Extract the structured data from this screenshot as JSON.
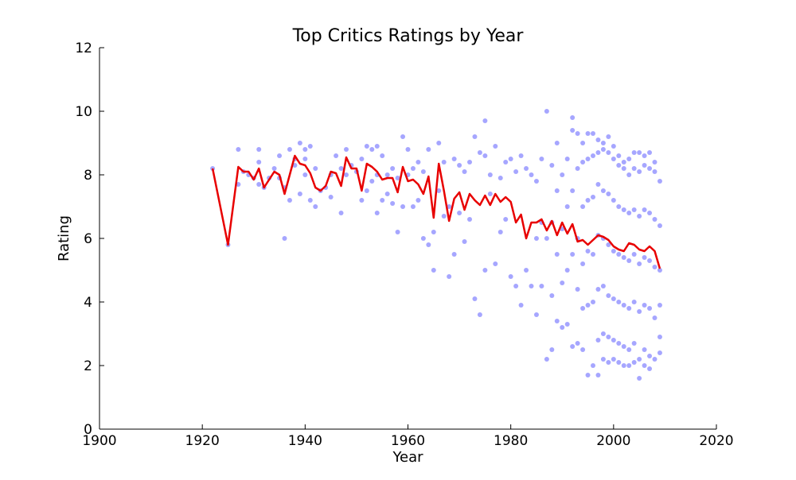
{
  "chart_data": {
    "type": "scatter",
    "title": "Top Critics Ratings by Year",
    "xlabel": "Year",
    "ylabel": "Rating",
    "xlim": [
      1900,
      2020
    ],
    "ylim": [
      0,
      12
    ],
    "x_ticks": [
      "1900",
      "1920",
      "1940",
      "1960",
      "1980",
      "2000",
      "2020"
    ],
    "y_ticks": [
      "0",
      "2",
      "4",
      "6",
      "8",
      "10",
      "12"
    ],
    "grid": false,
    "legend": "none",
    "colors": {
      "scatter": "#0000ff",
      "line": "#e80000",
      "axis": "#000000"
    },
    "series": [
      {
        "type": "scatter",
        "x": [
          1922,
          1925,
          1927,
          1927,
          1928,
          1929,
          1930,
          1931,
          1931,
          1931,
          1932,
          1933,
          1934,
          1935,
          1935,
          1936,
          1936,
          1937,
          1937,
          1938,
          1938,
          1939,
          1939,
          1940,
          1940,
          1940,
          1941,
          1941,
          1942,
          1942,
          1943,
          1944,
          1945,
          1945,
          1946,
          1947,
          1947,
          1948,
          1948,
          1949,
          1950,
          1951,
          1951,
          1952,
          1952,
          1953,
          1953,
          1954,
          1954,
          1954,
          1955,
          1955,
          1956,
          1956,
          1957,
          1957,
          1958,
          1958,
          1959,
          1959,
          1960,
          1960,
          1961,
          1961,
          1962,
          1962,
          1963,
          1963,
          1964,
          1964,
          1965,
          1965,
          1966,
          1966,
          1967,
          1967,
          1968,
          1968,
          1969,
          1969,
          1970,
          1970,
          1971,
          1971,
          1972,
          1972,
          1973,
          1973,
          1974,
          1974,
          1975,
          1975,
          1975,
          1976,
          1976,
          1977,
          1977,
          1978,
          1978,
          1979,
          1979,
          1980,
          1980,
          1981,
          1981,
          1982,
          1982,
          1983,
          1983,
          1984,
          1984,
          1985,
          1985,
          1985,
          1986,
          1986,
          1986,
          1987,
          1987,
          1987,
          1988,
          1988,
          1988,
          1988,
          1989,
          1989,
          1989,
          1989,
          1990,
          1990,
          1990,
          1990,
          1991,
          1991,
          1991,
          1991,
          1992,
          1992,
          1992,
          1992,
          1992,
          1993,
          1993,
          1993,
          1993,
          1993,
          1994,
          1994,
          1994,
          1994,
          1994,
          1994,
          1995,
          1995,
          1995,
          1995,
          1995,
          1995,
          1996,
          1996,
          1996,
          1996,
          1996,
          1996,
          1997,
          1997,
          1997,
          1997,
          1997,
          1997,
          1997,
          1998,
          1998,
          1998,
          1998,
          1998,
          1998,
          1998,
          1999,
          1999,
          1999,
          1999,
          1999,
          1999,
          1999,
          2000,
          2000,
          2000,
          2000,
          2000,
          2000,
          2000,
          2001,
          2001,
          2001,
          2001,
          2001,
          2001,
          2001,
          2002,
          2002,
          2002,
          2002,
          2002,
          2002,
          2002,
          2003,
          2003,
          2003,
          2003,
          2003,
          2003,
          2003,
          2004,
          2004,
          2004,
          2004,
          2004,
          2004,
          2004,
          2005,
          2005,
          2005,
          2005,
          2005,
          2005,
          2005,
          2006,
          2006,
          2006,
          2006,
          2006,
          2006,
          2006,
          2007,
          2007,
          2007,
          2007,
          2007,
          2007,
          2007,
          2008,
          2008,
          2008,
          2008,
          2008,
          2008,
          2009,
          2009,
          2009,
          2009,
          2009,
          2009
        ],
        "y": [
          8.2,
          5.8,
          8.8,
          7.7,
          8.1,
          8.0,
          7.9,
          8.8,
          8.4,
          7.7,
          7.6,
          7.9,
          8.2,
          8.6,
          7.9,
          6.0,
          7.6,
          8.8,
          7.2,
          8.3,
          8.5,
          9.0,
          7.4,
          8.8,
          8.0,
          8.5,
          8.9,
          7.2,
          7.0,
          8.2,
          7.5,
          7.6,
          7.3,
          8.0,
          8.6,
          6.8,
          8.2,
          8.8,
          8.0,
          8.3,
          8.1,
          7.2,
          8.5,
          8.9,
          7.5,
          8.8,
          7.8,
          8.9,
          6.8,
          8.0,
          7.2,
          8.6,
          8.0,
          7.4,
          8.2,
          7.1,
          6.2,
          7.9,
          9.2,
          7.0,
          8.8,
          8.0,
          8.2,
          7.0,
          8.4,
          7.2,
          8.1,
          6.0,
          8.8,
          5.8,
          6.2,
          5.0,
          9.0,
          7.5,
          8.4,
          6.7,
          7.0,
          4.8,
          8.5,
          5.5,
          8.3,
          6.8,
          8.1,
          5.9,
          8.4,
          6.6,
          9.2,
          4.1,
          8.7,
          3.6,
          9.7,
          8.6,
          5.0,
          8.0,
          7.4,
          8.9,
          5.2,
          7.9,
          6.2,
          8.4,
          6.6,
          8.5,
          4.8,
          8.1,
          4.5,
          8.6,
          3.9,
          8.2,
          5.0,
          8.0,
          4.5,
          7.8,
          6.0,
          3.6,
          8.5,
          6.5,
          4.5,
          10.0,
          6.0,
          2.2,
          8.3,
          6.5,
          4.2,
          2.5,
          9.0,
          7.5,
          5.5,
          3.4,
          8.0,
          6.3,
          4.6,
          3.2,
          8.5,
          7.0,
          5.0,
          3.3,
          9.8,
          9.4,
          7.5,
          5.5,
          2.6,
          9.3,
          8.2,
          6.0,
          4.4,
          2.7,
          9.0,
          8.4,
          7.0,
          5.2,
          3.8,
          2.5,
          9.3,
          8.5,
          7.2,
          5.6,
          3.9,
          1.7,
          9.3,
          8.6,
          7.3,
          5.5,
          4.0,
          2.0,
          9.1,
          8.7,
          7.7,
          6.1,
          4.4,
          2.8,
          1.7,
          9.0,
          8.8,
          7.5,
          6.0,
          4.5,
          3.0,
          2.2,
          9.2,
          8.7,
          7.4,
          5.8,
          4.2,
          2.9,
          2.1,
          8.9,
          8.5,
          7.2,
          5.6,
          4.1,
          2.8,
          2.2,
          8.6,
          8.3,
          7.0,
          5.5,
          4.0,
          2.7,
          2.1,
          8.4,
          8.2,
          6.9,
          5.4,
          3.9,
          2.6,
          2.0,
          8.5,
          8.0,
          6.8,
          5.3,
          3.8,
          2.5,
          2.0,
          8.7,
          8.2,
          6.9,
          5.5,
          4.0,
          2.7,
          2.1,
          8.7,
          8.1,
          6.7,
          5.2,
          3.7,
          2.2,
          1.6,
          8.6,
          8.3,
          6.9,
          5.4,
          3.9,
          2.5,
          2.0,
          8.7,
          8.2,
          6.8,
          5.3,
          3.8,
          2.3,
          1.9,
          8.4,
          8.1,
          6.6,
          5.1,
          3.5,
          2.2,
          7.8,
          6.4,
          5.0,
          3.9,
          2.9,
          2.4
        ]
      },
      {
        "type": "line",
        "x": [
          1922,
          1925,
          1927,
          1928,
          1929,
          1930,
          1931,
          1932,
          1933,
          1934,
          1935,
          1936,
          1937,
          1938,
          1939,
          1940,
          1941,
          1942,
          1943,
          1944,
          1945,
          1946,
          1947,
          1948,
          1949,
          1950,
          1951,
          1952,
          1953,
          1954,
          1955,
          1956,
          1957,
          1958,
          1959,
          1960,
          1961,
          1962,
          1963,
          1964,
          1965,
          1966,
          1967,
          1968,
          1969,
          1970,
          1971,
          1972,
          1973,
          1974,
          1975,
          1976,
          1977,
          1978,
          1979,
          1980,
          1981,
          1982,
          1983,
          1984,
          1985,
          1986,
          1987,
          1988,
          1989,
          1990,
          1991,
          1992,
          1993,
          1994,
          1995,
          1996,
          1997,
          1998,
          1999,
          2000,
          2001,
          2002,
          2003,
          2004,
          2005,
          2006,
          2007,
          2008,
          2009
        ],
        "y": [
          8.2,
          5.8,
          8.25,
          8.1,
          8.1,
          7.85,
          8.2,
          7.6,
          7.85,
          8.1,
          8.0,
          7.4,
          8.0,
          8.6,
          8.35,
          8.3,
          8.05,
          7.6,
          7.5,
          7.65,
          8.1,
          8.05,
          7.65,
          8.55,
          8.2,
          8.2,
          7.5,
          8.35,
          8.25,
          8.1,
          7.85,
          7.9,
          7.9,
          7.45,
          8.25,
          7.8,
          7.85,
          7.7,
          7.4,
          7.95,
          6.65,
          8.35,
          7.5,
          6.55,
          7.25,
          7.45,
          6.9,
          7.4,
          7.2,
          7.05,
          7.35,
          7.05,
          7.4,
          7.15,
          7.3,
          7.15,
          6.5,
          6.75,
          6.0,
          6.5,
          6.5,
          6.6,
          6.25,
          6.55,
          6.1,
          6.5,
          6.15,
          6.45,
          5.9,
          5.95,
          5.8,
          5.95,
          6.1,
          6.05,
          5.95,
          5.75,
          5.65,
          5.6,
          5.85,
          5.8,
          5.65,
          5.6,
          5.75,
          5.6,
          5.05
        ]
      }
    ]
  }
}
